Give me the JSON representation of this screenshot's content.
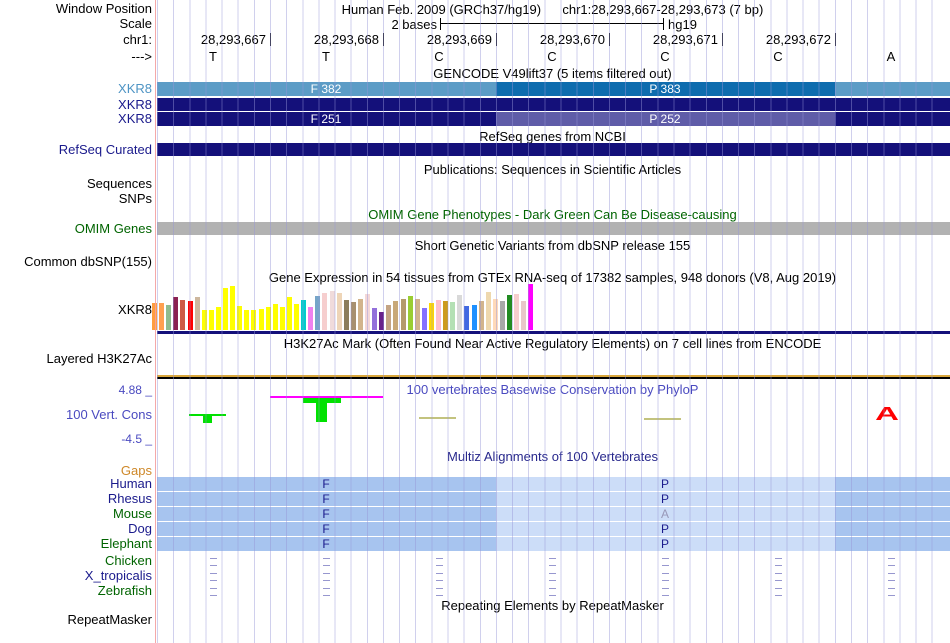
{
  "header": {
    "window_label": "Window Position",
    "assembly_text": "Human Feb. 2009 (GRCh37/hg19)",
    "position_text": "chr1:28,293,667-28,293,673 (7 bp)",
    "scale_label": "Scale",
    "scale_value": "2 bases",
    "scale_assembly": "hg19",
    "chrom_label": "chr1:",
    "ruler_ticks": [
      "28,293,667",
      "28,293,668",
      "28,293,669",
      "28,293,670",
      "28,293,671",
      "28,293,672"
    ],
    "strand_label": "--->",
    "bases": [
      "T",
      "T",
      "C",
      "C",
      "C",
      "C",
      "A"
    ]
  },
  "colors": {
    "gencode_light_blue": "#5C9CC6",
    "gencode_medium_blue": "#0E6CAE",
    "gencode_navy": "#14107A",
    "gencode_slate": "#5F5CA8",
    "omim_gray": "#B2B2B2",
    "multiz_dark_band": "#A7C4EF",
    "multiz_light_band": "#CCDDF8",
    "conservation_positive": "#00E100",
    "conservation_negative": "#FF0000",
    "magenta_cap": "#FF00FF",
    "h3k27ac_gold": "#D9A73C"
  },
  "tracks": {
    "gencode": {
      "title": "GENCODE V49lift37 (5 items filtered out)",
      "rows": [
        {
          "label": "XKR8",
          "texts": [
            "F 382",
            "P 383"
          ]
        },
        {
          "label": "XKR8",
          "texts": []
        },
        {
          "label": "XKR8",
          "texts": [
            "F 251",
            "P 252"
          ]
        }
      ]
    },
    "refseq": {
      "title": "RefSeq genes from NCBI",
      "label": "RefSeq Curated"
    },
    "publications": {
      "title": "Publications: Sequences in Scientific Articles",
      "labels": [
        "Sequences",
        "SNPs"
      ]
    },
    "omim": {
      "title": "OMIM Gene Phenotypes - Dark Green Can Be Disease-causing",
      "label": "OMIM Genes"
    },
    "dbsnp": {
      "title": "Short Genetic Variants from dbSNP release 155",
      "label": "Common dbSNP(155)"
    },
    "gtex": {
      "title": "Gene Expression in 54 tissues from GTEx RNA-seq of 17382 samples, 948 donors (V8, Aug 2019)",
      "label": "XKR8",
      "bars": [
        [
          "#FF9E40",
          27
        ],
        [
          "#FFA050",
          27
        ],
        [
          "#8FBC8F",
          25
        ],
        [
          "#8B2252",
          33
        ],
        [
          "#CD5B45",
          30
        ],
        [
          "#FF0000",
          29
        ],
        [
          "#CDB79E",
          33
        ],
        [
          "#FFFF00",
          20
        ],
        [
          "#FFFF00",
          20
        ],
        [
          "#FFFF00",
          23
        ],
        [
          "#FFFF00",
          42
        ],
        [
          "#FFFF00",
          44
        ],
        [
          "#FFFF00",
          24
        ],
        [
          "#FFFF00",
          20
        ],
        [
          "#FFFF00",
          20
        ],
        [
          "#FFFF00",
          21
        ],
        [
          "#FFFF00",
          23
        ],
        [
          "#FFFF00",
          26
        ],
        [
          "#FFFF00",
          23
        ],
        [
          "#FFFF00",
          33
        ],
        [
          "#FFFF00",
          26
        ],
        [
          "#00CDCD",
          30
        ],
        [
          "#EE82EE",
          23
        ],
        [
          "#76A5C8",
          34
        ],
        [
          "#F6CECE",
          37
        ],
        [
          "#F0DBDB",
          39
        ],
        [
          "#EED5B7",
          37
        ],
        [
          "#8B7D5A",
          30
        ],
        [
          "#A89070",
          28
        ],
        [
          "#D2B48C",
          31
        ],
        [
          "#F4D8D8",
          36
        ],
        [
          "#9370DB",
          22
        ],
        [
          "#68228B",
          18
        ],
        [
          "#C4A484",
          25
        ],
        [
          "#C8A878",
          29
        ],
        [
          "#B49A6A",
          31
        ],
        [
          "#9ACD32",
          34
        ],
        [
          "#D2B48C",
          31
        ],
        [
          "#8470FF",
          22
        ],
        [
          "#FFD700",
          27
        ],
        [
          "#FFC0CB",
          30
        ],
        [
          "#CD9B1D",
          29
        ],
        [
          "#B4E0B4",
          28
        ],
        [
          "#D9D9D9",
          35
        ],
        [
          "#4169E1",
          24
        ],
        [
          "#1E90FF",
          25
        ],
        [
          "#D2B48C",
          29
        ],
        [
          "#EED8AE",
          38
        ],
        [
          "#FFDAB9",
          31
        ],
        [
          "#A8A8A8",
          29
        ],
        [
          "#228B22",
          35
        ],
        [
          "#F6CECE",
          36
        ],
        [
          "#E8C8C8",
          29
        ],
        [
          "#FF00FF",
          46
        ]
      ]
    },
    "h3k27ac": {
      "title": "H3K27Ac Mark (Often Found Near Active Regulatory Elements) on 7 cell lines from ENCODE",
      "label": "Layered H3K27Ac"
    },
    "conservation": {
      "title": "100 vertebrates Basewise Conservation by PhyloP",
      "label": "100 Vert. Cons",
      "max": "4.88 _",
      "min": "-4.5 _"
    },
    "multiz": {
      "title": "Multiz Alignments of 100 Vertebrates",
      "gaps_label": "Gaps",
      "species": [
        {
          "name": "Human",
          "name_color": "#1A1A8C",
          "letters": [
            [
              "F",
              "#1A1A8C"
            ],
            [
              "P",
              "#1A1A8C"
            ]
          ]
        },
        {
          "name": "Rhesus",
          "name_color": "#1A1A8C",
          "letters": [
            [
              "F",
              "#1A1A8C"
            ],
            [
              "P",
              "#1A1A8C"
            ]
          ]
        },
        {
          "name": "Mouse",
          "name_color": "#006400",
          "letters": [
            [
              "F",
              "#1A1A8C"
            ],
            [
              "A",
              "#9898B8"
            ]
          ]
        },
        {
          "name": "Dog",
          "name_color": "#1A1A8C",
          "letters": [
            [
              "F",
              "#1A1A8C"
            ],
            [
              "P",
              "#1A1A8C"
            ]
          ]
        },
        {
          "name": "Elephant",
          "name_color": "#006400",
          "letters": [
            [
              "F",
              "#1A1A8C"
            ],
            [
              "P",
              "#1A1A8C"
            ]
          ]
        }
      ],
      "dash_species": [
        {
          "name": "Chicken",
          "name_color": "#006400"
        },
        {
          "name": "X_tropicalis",
          "name_color": "#1A1A8C"
        },
        {
          "name": "Zebrafish",
          "name_color": "#006400"
        }
      ]
    },
    "repeatmasker": {
      "title": "Repeating Elements by RepeatMasker",
      "label": "RepeatMasker"
    }
  }
}
